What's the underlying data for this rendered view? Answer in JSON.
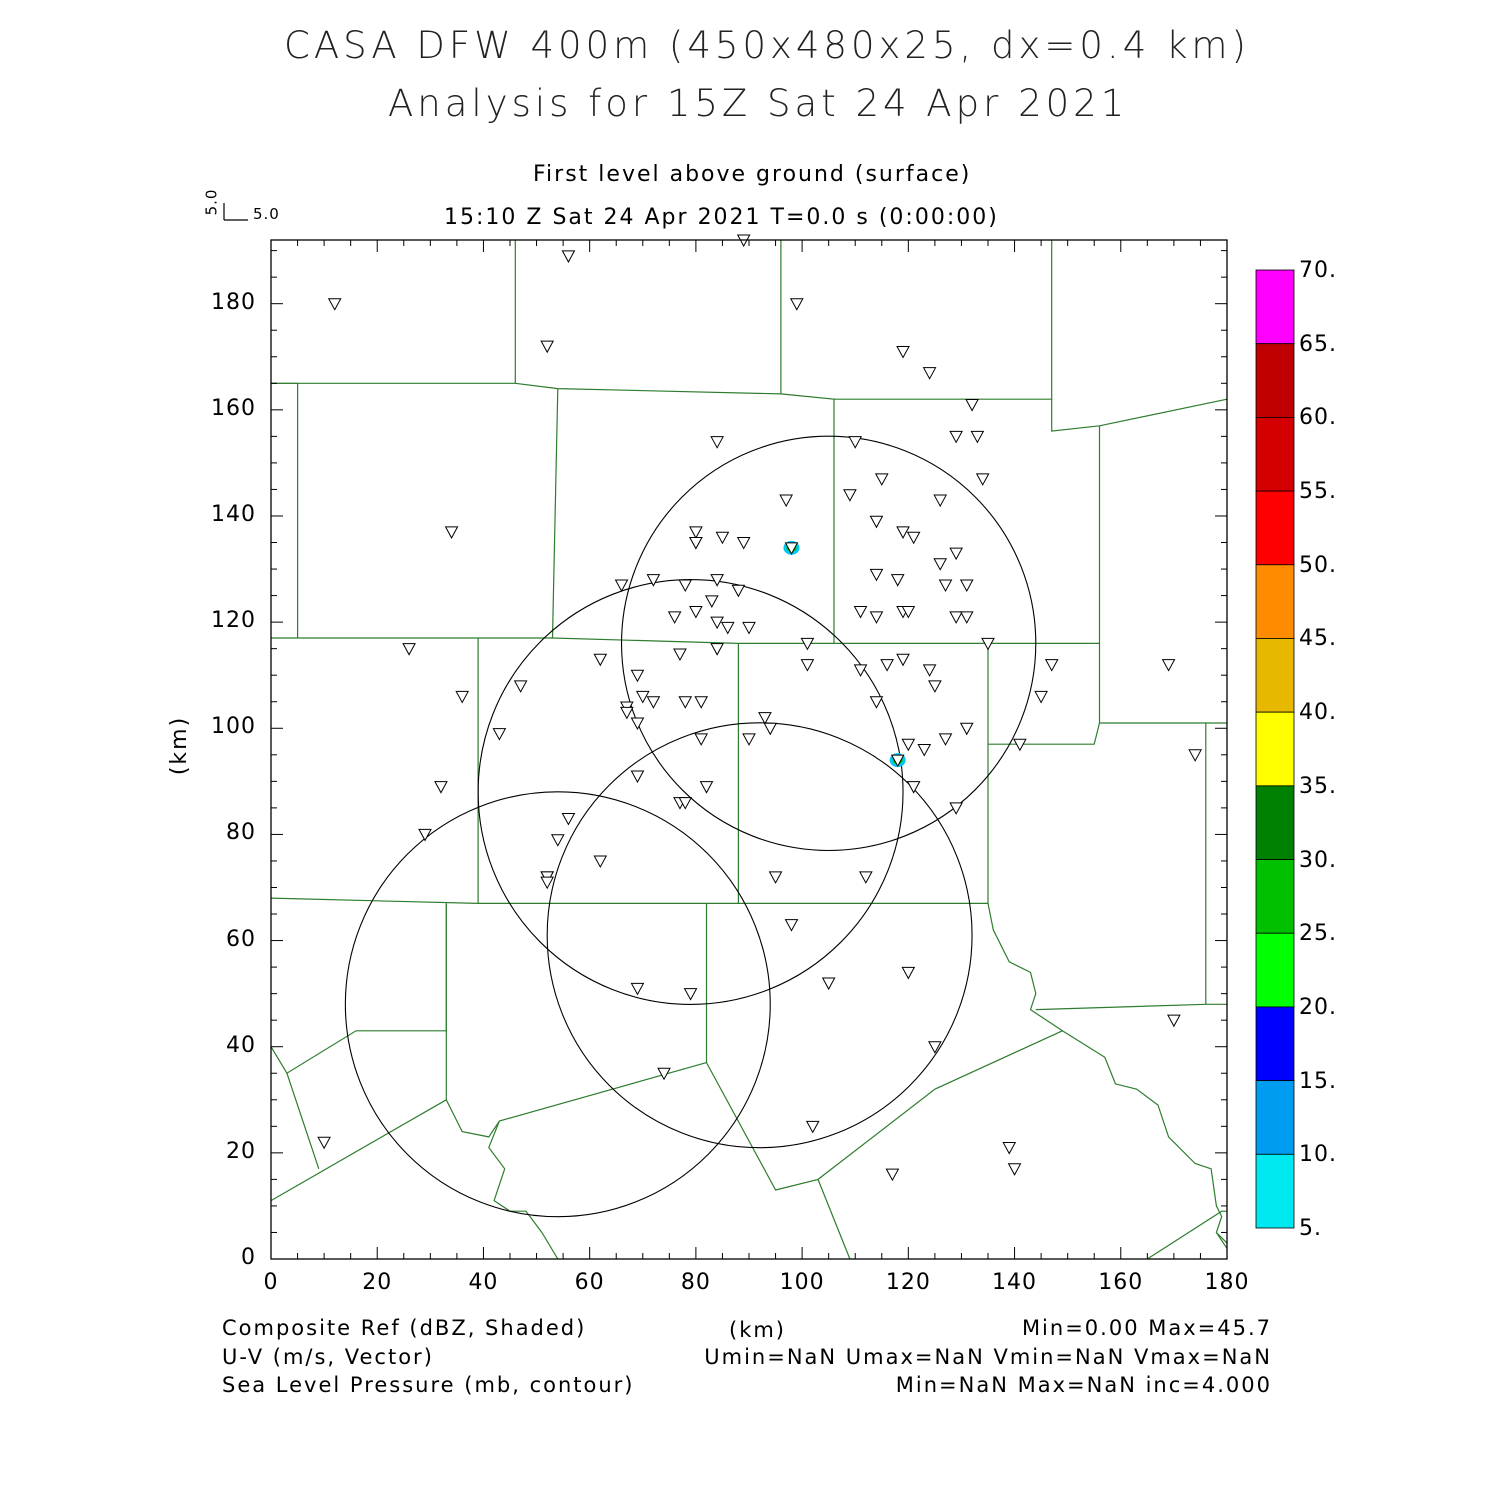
{
  "title": {
    "line1": "CASA DFW 400m (450x480x25, dx=0.4 km)",
    "line2": "Analysis for 15Z Sat 24 Apr 2021"
  },
  "subtitle": {
    "level": "First level above ground (surface)",
    "time": "15:10 Z Sat 24 Apr 2021    T=0.0 s (0:00:00)"
  },
  "vector_key": {
    "u": "5.0",
    "v": "5.0"
  },
  "axes": {
    "x_label": "(km)",
    "y_label": "(km)",
    "x_ticks": [
      "0",
      "20",
      "40",
      "60",
      "80",
      "100",
      "120",
      "140",
      "160",
      "180"
    ],
    "y_ticks": [
      "0",
      "20",
      "40",
      "60",
      "80",
      "100",
      "120",
      "140",
      "160",
      "180"
    ],
    "x_range": [
      0,
      180
    ],
    "y_range": [
      0,
      192
    ]
  },
  "colorbar": {
    "labels": [
      "70.",
      "65.",
      "60.",
      "55.",
      "50.",
      "45.",
      "40.",
      "35.",
      "30.",
      "25.",
      "20.",
      "15.",
      "10.",
      "5."
    ],
    "colors": [
      "#ff00ff",
      "#c00000",
      "#d40000",
      "#ff0000",
      "#ff8c00",
      "#e6b800",
      "#ffff00",
      "#008000",
      "#00c000",
      "#00ff00",
      "#0000ff",
      "#009cf0",
      "#00e8f0"
    ]
  },
  "footer": {
    "left1": "Composite Ref (dBZ, Shaded)",
    "left2": "U-V (m/s, Vector)",
    "left3": "Sea Level Pressure (mb, contour)",
    "center": "(km)",
    "right1": "Min=0.00  Max=45.7",
    "right2": "Umin=NaN  Umax=NaN  Vmin=NaN  Vmax=NaN",
    "right3": "Min=NaN  Max=NaN  inc=4.000"
  },
  "radar_rings": [
    {
      "center_km": [
        105,
        116
      ],
      "radius_km": 39
    },
    {
      "center_km": [
        79,
        88
      ],
      "radius_km": 40
    },
    {
      "center_km": [
        92,
        61
      ],
      "radius_km": 40
    },
    {
      "center_km": [
        54,
        48
      ],
      "radius_km": 40
    }
  ],
  "echoes_km": [
    [
      98,
      134
    ],
    [
      118,
      94
    ]
  ],
  "stations_km": [
    [
      12,
      180
    ],
    [
      56,
      189
    ],
    [
      89,
      192
    ],
    [
      99,
      180
    ],
    [
      52,
      172
    ],
    [
      119,
      171
    ],
    [
      124,
      167
    ],
    [
      132,
      161
    ],
    [
      34,
      137
    ],
    [
      84,
      154
    ],
    [
      110,
      154
    ],
    [
      129,
      155
    ],
    [
      133,
      155
    ],
    [
      134,
      147
    ],
    [
      115,
      147
    ],
    [
      109,
      144
    ],
    [
      126,
      143
    ],
    [
      97,
      143
    ],
    [
      114,
      139
    ],
    [
      119,
      137
    ],
    [
      121,
      136
    ],
    [
      80,
      137
    ],
    [
      80,
      135
    ],
    [
      85,
      136
    ],
    [
      89,
      135
    ],
    [
      80,
      135
    ],
    [
      98,
      134
    ],
    [
      126,
      131
    ],
    [
      129,
      133
    ],
    [
      114,
      129
    ],
    [
      118,
      128
    ],
    [
      127,
      127
    ],
    [
      131,
      127
    ],
    [
      84,
      128
    ],
    [
      66,
      127
    ],
    [
      72,
      128
    ],
    [
      78,
      127
    ],
    [
      88,
      126
    ],
    [
      83,
      124
    ],
    [
      76,
      121
    ],
    [
      80,
      122
    ],
    [
      111,
      122
    ],
    [
      114,
      121
    ],
    [
      119,
      122
    ],
    [
      120,
      122
    ],
    [
      129,
      121
    ],
    [
      131,
      121
    ],
    [
      84,
      120
    ],
    [
      86,
      119
    ],
    [
      90,
      119
    ],
    [
      26,
      115
    ],
    [
      84,
      115
    ],
    [
      101,
      116
    ],
    [
      135,
      116
    ],
    [
      62,
      113
    ],
    [
      77,
      114
    ],
    [
      101,
      112
    ],
    [
      111,
      111
    ],
    [
      116,
      112
    ],
    [
      119,
      113
    ],
    [
      124,
      111
    ],
    [
      147,
      112
    ],
    [
      169,
      112
    ],
    [
      69,
      110
    ],
    [
      47,
      108
    ],
    [
      125,
      108
    ],
    [
      36,
      106
    ],
    [
      67,
      104
    ],
    [
      70,
      106
    ],
    [
      72,
      105
    ],
    [
      78,
      105
    ],
    [
      81,
      105
    ],
    [
      114,
      105
    ],
    [
      145,
      106
    ],
    [
      67,
      103
    ],
    [
      69,
      101
    ],
    [
      93,
      102
    ],
    [
      94,
      100
    ],
    [
      131,
      100
    ],
    [
      43,
      99
    ],
    [
      81,
      98
    ],
    [
      90,
      98
    ],
    [
      120,
      97
    ],
    [
      123,
      96
    ],
    [
      127,
      98
    ],
    [
      141,
      97
    ],
    [
      174,
      95
    ],
    [
      118,
      94
    ],
    [
      69,
      91
    ],
    [
      32,
      89
    ],
    [
      82,
      89
    ],
    [
      121,
      89
    ],
    [
      77,
      86
    ],
    [
      78,
      86
    ],
    [
      129,
      85
    ],
    [
      56,
      83
    ],
    [
      29,
      80
    ],
    [
      54,
      79
    ],
    [
      62,
      75
    ],
    [
      52,
      72
    ],
    [
      52,
      72
    ],
    [
      52,
      71
    ],
    [
      95,
      72
    ],
    [
      112,
      72
    ],
    [
      98,
      63
    ],
    [
      120,
      54
    ],
    [
      105,
      52
    ],
    [
      69,
      51
    ],
    [
      79,
      50
    ],
    [
      170,
      45
    ],
    [
      125,
      40
    ],
    [
      74,
      35
    ],
    [
      102,
      25
    ],
    [
      10,
      22
    ],
    [
      139,
      21
    ],
    [
      140,
      17
    ],
    [
      117,
      16
    ]
  ],
  "boundaries": [
    [
      [
        0,
        165
      ],
      [
        46,
        165
      ],
      [
        46,
        192
      ]
    ],
    [
      [
        0,
        165
      ],
      [
        5,
        165
      ],
      [
        5,
        117
      ]
    ],
    [
      [
        46,
        165
      ],
      [
        54,
        164
      ],
      [
        96,
        163
      ],
      [
        96,
        192
      ]
    ],
    [
      [
        54,
        164
      ],
      [
        53,
        117
      ]
    ],
    [
      [
        96,
        163
      ],
      [
        106,
        162
      ],
      [
        106,
        116
      ]
    ],
    [
      [
        106,
        162
      ],
      [
        147,
        162
      ],
      [
        147,
        192
      ]
    ],
    [
      [
        147,
        162
      ],
      [
        147,
        156
      ],
      [
        156,
        157
      ],
      [
        180,
        162
      ]
    ],
    [
      [
        156,
        157
      ],
      [
        156,
        116
      ],
      [
        155,
        116
      ]
    ],
    [
      [
        0,
        117
      ],
      [
        39,
        117
      ],
      [
        53,
        117
      ],
      [
        88,
        116
      ],
      [
        106,
        116
      ],
      [
        135,
        116
      ],
      [
        155,
        116
      ]
    ],
    [
      [
        156,
        116
      ],
      [
        156,
        101
      ],
      [
        180,
        101
      ]
    ],
    [
      [
        156,
        101
      ],
      [
        155,
        97
      ],
      [
        135,
        97
      ]
    ],
    [
      [
        135,
        116
      ],
      [
        135,
        97
      ],
      [
        135,
        67
      ]
    ],
    [
      [
        39,
        117
      ],
      [
        39,
        67
      ]
    ],
    [
      [
        88,
        116
      ],
      [
        88,
        67
      ]
    ],
    [
      [
        0,
        68
      ],
      [
        39,
        67
      ],
      [
        88,
        67
      ],
      [
        135,
        67
      ]
    ],
    [
      [
        33,
        67
      ],
      [
        33,
        43
      ],
      [
        16,
        43
      ],
      [
        3,
        35
      ],
      [
        0,
        40
      ]
    ],
    [
      [
        33,
        67
      ],
      [
        33,
        30
      ],
      [
        36,
        24
      ],
      [
        41,
        23
      ],
      [
        43,
        26
      ],
      [
        82,
        37
      ],
      [
        82,
        67
      ]
    ],
    [
      [
        0,
        11
      ],
      [
        33,
        30
      ]
    ],
    [
      [
        3,
        35
      ],
      [
        9,
        17
      ]
    ],
    [
      [
        82,
        37
      ],
      [
        95,
        13
      ],
      [
        103,
        15
      ],
      [
        125,
        32
      ],
      [
        149,
        43
      ]
    ],
    [
      [
        103,
        15
      ],
      [
        109,
        0
      ]
    ],
    [
      [
        43,
        26
      ],
      [
        41,
        21
      ],
      [
        44,
        17
      ],
      [
        42,
        11
      ],
      [
        45,
        9
      ],
      [
        48,
        9
      ],
      [
        51,
        5
      ],
      [
        54,
        0
      ]
    ],
    [
      [
        135,
        67
      ],
      [
        136,
        62
      ],
      [
        139,
        56
      ],
      [
        143,
        54
      ],
      [
        144,
        50
      ],
      [
        143,
        47
      ],
      [
        149,
        43
      ],
      [
        157,
        38
      ],
      [
        159,
        33
      ],
      [
        163,
        32
      ],
      [
        167,
        29
      ],
      [
        169,
        23
      ],
      [
        174,
        18
      ],
      [
        177,
        17
      ],
      [
        178,
        10
      ],
      [
        179,
        8
      ],
      [
        178,
        5
      ],
      [
        180,
        3
      ]
    ],
    [
      [
        144,
        47
      ],
      [
        176,
        48
      ],
      [
        180,
        48
      ]
    ],
    [
      [
        176,
        101
      ],
      [
        176,
        48
      ]
    ],
    [
      [
        165,
        0
      ],
      [
        179,
        9
      ],
      [
        180,
        9
      ]
    ],
    [
      [
        178,
        5
      ],
      [
        180,
        2
      ]
    ]
  ]
}
